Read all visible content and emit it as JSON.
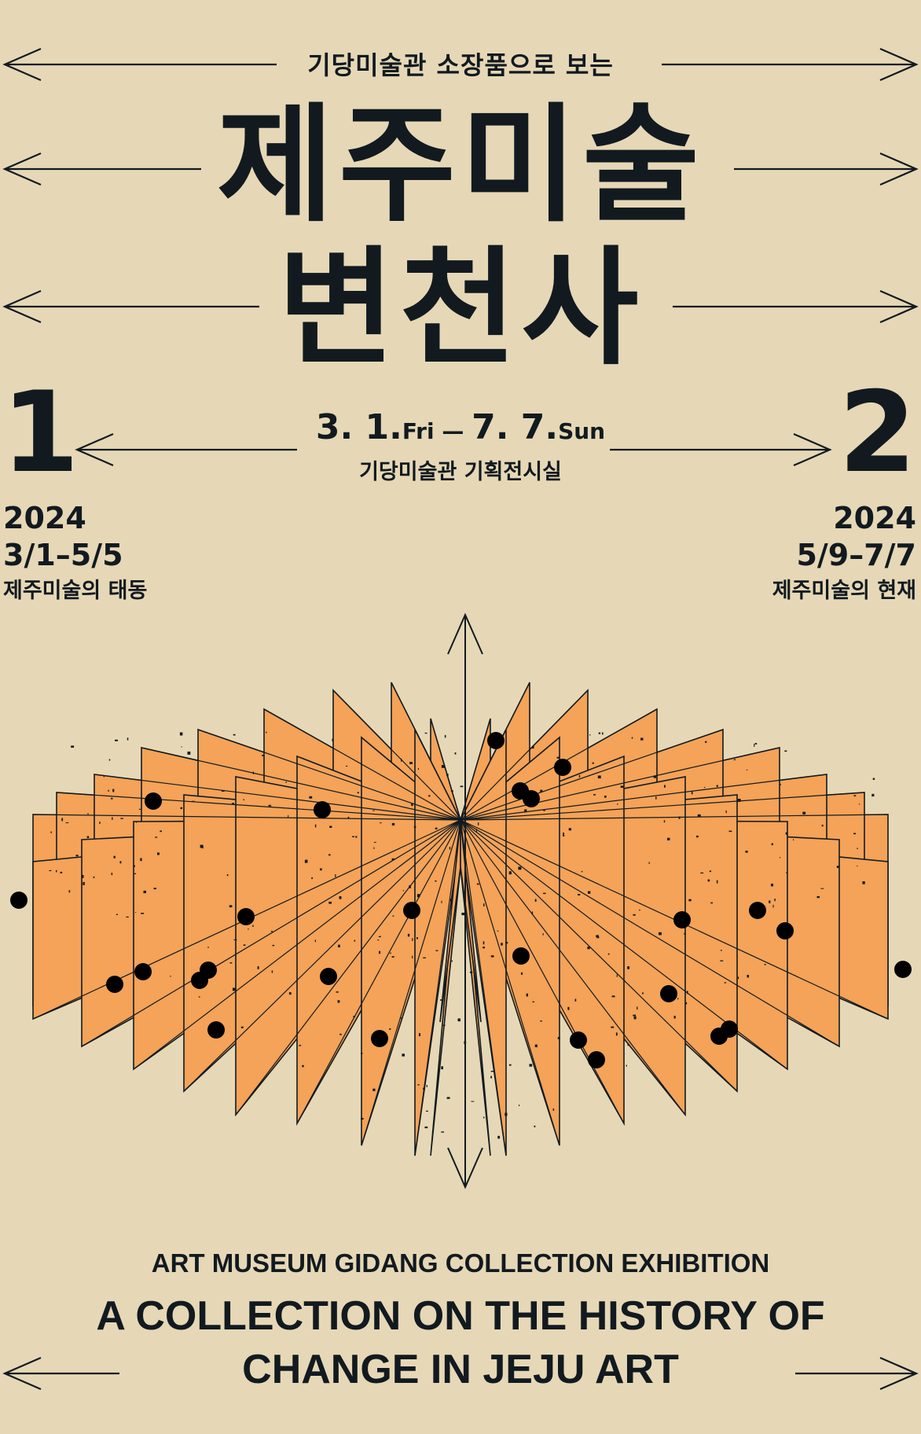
{
  "poster": {
    "subtitle_ko": "기당미술관 소장품으로 보는",
    "title_line1": "제주미술",
    "title_line2": "변천사",
    "date": {
      "start": "3. 1.",
      "start_day": "Fri",
      "separator": " — ",
      "end": "7. 7.",
      "end_day": "Sun"
    },
    "venue": "기당미술관 기획전시실",
    "part1": {
      "number": "1",
      "year": "2024",
      "range": "3/1–5/5",
      "title": "제주미술의 태동"
    },
    "part2": {
      "number": "2",
      "year": "2024",
      "range": "5/9–7/7",
      "title": "제주미술의 현재"
    },
    "en_label": "ART MUSEUM GIDANG COLLECTION EXHIBITION",
    "en_title_line1": "A COLLECTION ON THE HISTORY OF",
    "en_title_line2": "CHANGE IN JEJU ART"
  },
  "colors": {
    "background": "#E6D8B6",
    "ink": "#121A20",
    "panel_orange": "#F4A358"
  },
  "icons": {
    "arrows": "double-headed-arrow-line",
    "dots": "black-dot"
  }
}
